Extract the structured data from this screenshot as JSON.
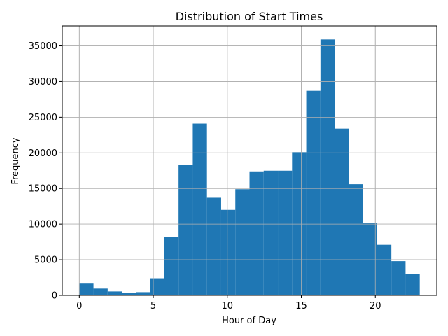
{
  "chart_data": {
    "type": "bar",
    "subtype": "histogram",
    "title": "Distribution of Start Times",
    "xlabel": "Hour of Day",
    "ylabel": "Frequency",
    "xlim": [
      -1.15,
      24.15
    ],
    "ylim": [
      0,
      37800
    ],
    "x_ticks": [
      0,
      5,
      10,
      15,
      20
    ],
    "y_ticks": [
      0,
      5000,
      10000,
      15000,
      20000,
      25000,
      30000,
      35000
    ],
    "grid": true,
    "bar_color": "#1f77b4",
    "bins": [
      {
        "start": 0.0,
        "end": 0.958,
        "value": 1650
      },
      {
        "start": 0.958,
        "end": 1.917,
        "value": 950
      },
      {
        "start": 1.917,
        "end": 2.875,
        "value": 550
      },
      {
        "start": 2.875,
        "end": 3.833,
        "value": 350
      },
      {
        "start": 3.833,
        "end": 4.792,
        "value": 450
      },
      {
        "start": 4.792,
        "end": 5.75,
        "value": 2400
      },
      {
        "start": 5.75,
        "end": 6.708,
        "value": 8200
      },
      {
        "start": 6.708,
        "end": 7.667,
        "value": 18300
      },
      {
        "start": 7.667,
        "end": 8.625,
        "value": 24100
      },
      {
        "start": 8.625,
        "end": 9.583,
        "value": 13700
      },
      {
        "start": 9.583,
        "end": 10.542,
        "value": 12000
      },
      {
        "start": 10.542,
        "end": 11.5,
        "value": 14900
      },
      {
        "start": 11.5,
        "end": 12.458,
        "value": 17400
      },
      {
        "start": 12.458,
        "end": 13.417,
        "value": 17500
      },
      {
        "start": 13.417,
        "end": 14.375,
        "value": 17500
      },
      {
        "start": 14.375,
        "end": 15.333,
        "value": 20100
      },
      {
        "start": 15.333,
        "end": 16.292,
        "value": 28700
      },
      {
        "start": 16.292,
        "end": 17.25,
        "value": 35900
      },
      {
        "start": 17.25,
        "end": 18.208,
        "value": 23400
      },
      {
        "start": 18.208,
        "end": 19.167,
        "value": 15600
      },
      {
        "start": 19.167,
        "end": 20.125,
        "value": 10200
      },
      {
        "start": 20.125,
        "end": 21.083,
        "value": 7100
      },
      {
        "start": 21.083,
        "end": 22.042,
        "value": 4800
      },
      {
        "start": 22.042,
        "end": 23.0,
        "value": 3000
      }
    ]
  }
}
